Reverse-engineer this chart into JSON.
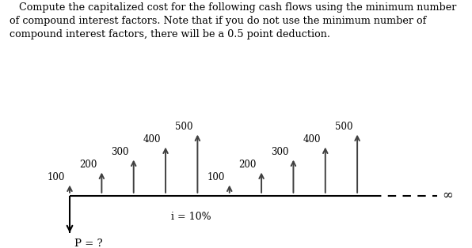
{
  "title_lines": [
    "   Compute the capitalized cost for the following cash flows using the minimum number",
    "of compound interest factors. Note that if you do not use the minimum number of",
    "compound interest factors, there will be a 0.5 point deduction."
  ],
  "group1_periods": [
    0,
    1,
    2,
    3,
    4
  ],
  "group1_values": [
    100,
    200,
    300,
    400,
    500
  ],
  "group2_periods": [
    5,
    6,
    7,
    8,
    9
  ],
  "group2_values": [
    100,
    200,
    300,
    400,
    500
  ],
  "interest_label": "i = 10%",
  "p_label": "P = ?",
  "infinity_symbol": "∞",
  "background_color": "#ffffff",
  "arrow_color": "#404040",
  "line_color": "#000000",
  "text_color": "#000000",
  "font_size_title": 9.2,
  "font_size_values": 8.5,
  "font_size_interest": 9.0,
  "font_size_p": 9.5,
  "font_size_infinity": 12
}
